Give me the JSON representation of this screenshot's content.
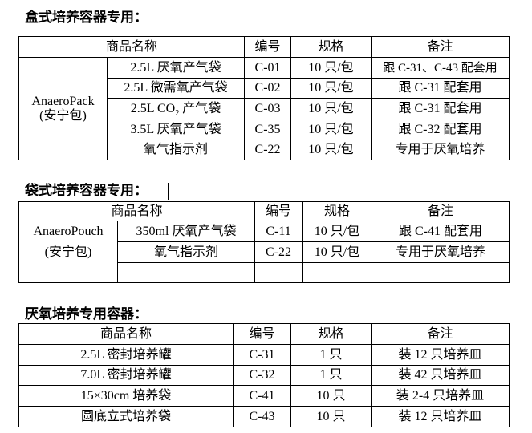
{
  "section1": {
    "title": "盒式培养容器专用：",
    "headers": [
      "商品名称",
      "编号",
      "规格",
      "备注"
    ],
    "group_label_1": "AnaeroPack",
    "group_label_2": "(安宁包)",
    "rows": [
      {
        "name": "2.5L 厌氧产气袋",
        "code": "C-01",
        "spec": "10 只/包",
        "note": "跟 C-31、C-43 配套用"
      },
      {
        "name": "2.5L 微需氧产气袋",
        "code": "C-02",
        "spec": "10 只/包",
        "note": "跟 C-31 配套用"
      },
      {
        "name_prefix": "2.5L CO",
        "name_sub": "2",
        "name_suffix": " 产气袋",
        "code": "C-03",
        "spec": "10 只/包",
        "note": "跟 C-31 配套用"
      },
      {
        "name": "3.5L 厌氧产气袋",
        "code": "C-35",
        "spec": "10 只/包",
        "note": "跟 C-32 配套用"
      },
      {
        "name": "氧气指示剂",
        "code": "C-22",
        "spec": "10 只/包",
        "note": "专用于厌氧培养"
      }
    ]
  },
  "section2": {
    "title": "袋式培养容器专用：",
    "headers": [
      "商品名称",
      "编号",
      "规格",
      "备注"
    ],
    "group_label_1": "AnaeroPouch",
    "group_label_2": "(安宁包)",
    "rows": [
      {
        "name": "350ml 厌氧产气袋",
        "code": "C-11",
        "spec": "10 只/包",
        "note": "跟 C-41 配套用"
      },
      {
        "name": "氧气指示剂",
        "code": "C-22",
        "spec": "10 只/包",
        "note": "专用于厌氧培养"
      }
    ]
  },
  "section3": {
    "title": "厌氧培养专用容器：",
    "headers": [
      "商品名称",
      "编号",
      "规格",
      "备注"
    ],
    "rows": [
      {
        "name": "2.5L 密封培养罐",
        "code": "C-31",
        "spec": "1 只",
        "note": "装 12 只培养皿"
      },
      {
        "name": "7.0L 密封培养罐",
        "code": "C-32",
        "spec": "1 只",
        "note": "装 42 只培养皿"
      },
      {
        "name": "15×30cm 培养袋",
        "code": "C-41",
        "spec": "10 只",
        "note": "装 2-4 只培养皿"
      },
      {
        "name": "圆底立式培养袋",
        "code": "C-43",
        "spec": "10 只",
        "note": "装 12 只培养皿"
      }
    ]
  }
}
